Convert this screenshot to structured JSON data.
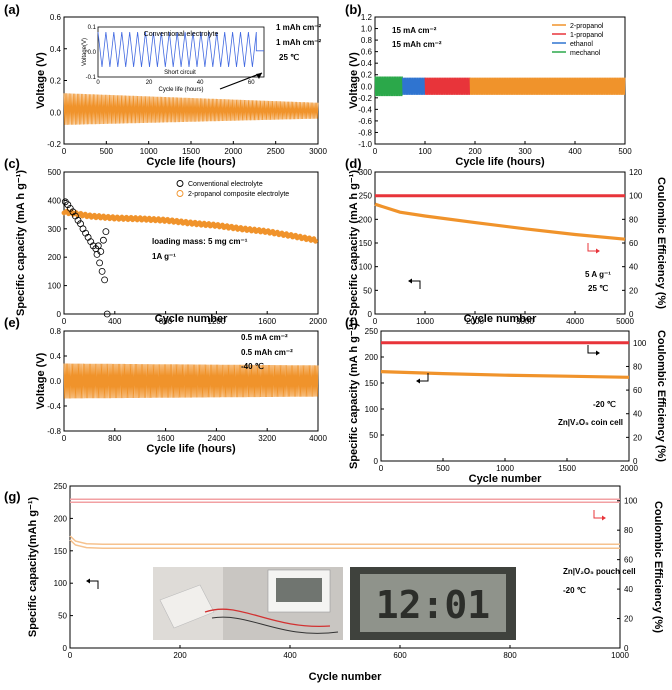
{
  "chart_data": [
    {
      "id": "a",
      "type": "line",
      "panel_label": "(a)",
      "xlabel": "Cycle life (hours)",
      "ylabel": "Voltage (V)",
      "xlim": [
        0,
        3000
      ],
      "ylim": [
        -0.2,
        0.6
      ],
      "xticks": [
        "0",
        "500",
        "1000",
        "1500",
        "2000",
        "2500",
        "3000"
      ],
      "yticks": [
        "-0.2",
        "0.0",
        "0.2",
        "0.4",
        "0.6"
      ],
      "series": [
        {
          "color": "#f0932b",
          "x": [
            0,
            3000
          ],
          "upper": [
            0.12,
            0.06
          ],
          "lower": [
            -0.08,
            -0.04
          ]
        }
      ],
      "inset": {
        "title": "Conventional electrolyte",
        "xlabel": "Cycle life (hours)",
        "ylabel": "Voltage(V)",
        "xlim": [
          0,
          65
        ],
        "ylim": [
          -0.1,
          0.1
        ],
        "xticks": [
          "0",
          "20",
          "40",
          "60"
        ],
        "yticks": [
          "-0.1",
          "0.0",
          "0.1"
        ],
        "annotation": "Short circuit",
        "short_circuit_x": 62,
        "color": "#4169e1"
      },
      "annotations": [
        "1 mAh cm⁻²",
        "1 mAh cm⁻²",
        "25 ℃"
      ]
    },
    {
      "id": "b",
      "type": "line",
      "panel_label": "(b)",
      "xlabel": "Cycle life (hours)",
      "ylabel": "Voltage (V)",
      "xlim": [
        0,
        500
      ],
      "ylim": [
        -1.0,
        1.2
      ],
      "xticks": [
        "0",
        "100",
        "200",
        "300",
        "400",
        "500"
      ],
      "yticks": [
        "-1.0",
        "-0.8",
        "-0.6",
        "-0.4",
        "-0.2",
        "0.0",
        "0.2",
        "0.4",
        "0.6",
        "0.8",
        "1.0",
        "1.2"
      ],
      "annotations": [
        "15 mA cm⁻²",
        "15 mAh cm⁻²"
      ],
      "series": [
        {
          "name": "2-propanol",
          "color": "#f0932b",
          "x": [
            190,
            500
          ],
          "upper": [
            0.15,
            0.15
          ],
          "lower": [
            -0.15,
            -0.15
          ]
        },
        {
          "name": "1-propanol",
          "color": "#e8343a",
          "x": [
            100,
            190
          ],
          "upper": [
            0.15,
            0.15
          ],
          "lower": [
            -0.15,
            -0.15
          ]
        },
        {
          "name": "ethanol",
          "color": "#2f74d0",
          "x": [
            55,
            100
          ],
          "upper": [
            0.15,
            0.15
          ],
          "lower": [
            -0.15,
            -0.15
          ]
        },
        {
          "name": "mechanol",
          "color": "#2ba84a",
          "x": [
            0,
            55
          ],
          "upper": [
            0.17,
            0.17
          ],
          "lower": [
            -0.17,
            -0.17
          ]
        }
      ],
      "legend_position": "top-right"
    },
    {
      "id": "c",
      "type": "scatter",
      "panel_label": "(c)",
      "xlabel": "Cycle number",
      "ylabel": "Specific capacity (mA h g⁻¹)",
      "xlim": [
        0,
        2000
      ],
      "ylim": [
        0,
        500
      ],
      "xticks": [
        "0",
        "400",
        "800",
        "1200",
        "1600",
        "2000"
      ],
      "yticks": [
        "0",
        "100",
        "200",
        "300",
        "400",
        "500"
      ],
      "annotations": [
        "loading mass: 5 mg cm⁻¹",
        "1A g⁻¹"
      ],
      "series": [
        {
          "name": "Conventional electrolyte",
          "color": "#000000",
          "x": [
            10,
            30,
            50,
            70,
            90,
            110,
            130,
            150,
            170,
            190,
            210,
            230,
            250,
            260,
            270,
            280,
            290,
            300,
            310,
            320,
            330,
            340
          ],
          "y": [
            395,
            385,
            372,
            360,
            345,
            330,
            318,
            300,
            285,
            270,
            255,
            240,
            230,
            210,
            240,
            180,
            220,
            150,
            260,
            120,
            290,
            0
          ]
        },
        {
          "name": "2-propanol composite electrolyte",
          "color": "#f0932b",
          "x": [
            0,
            200,
            400,
            600,
            800,
            1000,
            1200,
            1400,
            1600,
            1800,
            1980
          ],
          "y": [
            360,
            345,
            338,
            335,
            330,
            320,
            312,
            300,
            290,
            275,
            260
          ]
        }
      ],
      "legend_position": "top-right"
    },
    {
      "id": "d",
      "type": "line",
      "panel_label": "(d)",
      "xlabel": "Cycle number",
      "ylabel": "Specific capacity (mA h g⁻¹)",
      "y2label": "Coulombic Efficiency (%)",
      "xlim": [
        0,
        5000
      ],
      "ylim": [
        0,
        300
      ],
      "y2lim": [
        0,
        120
      ],
      "xticks": [
        "0",
        "1000",
        "2000",
        "3000",
        "4000",
        "5000"
      ],
      "yticks": [
        "0",
        "50",
        "100",
        "150",
        "200",
        "250",
        "300"
      ],
      "y2ticks": [
        "0",
        "20",
        "40",
        "60",
        "80",
        "100",
        "120"
      ],
      "annotations": [
        "5 A g⁻¹",
        "25 ℃"
      ],
      "series": [
        {
          "axis": "left",
          "color": "#f0932b",
          "x": [
            0,
            500,
            1000,
            2000,
            3000,
            4000,
            5000
          ],
          "y": [
            232,
            215,
            207,
            193,
            180,
            168,
            158
          ]
        },
        {
          "axis": "right",
          "color": "#e8343a",
          "x": [
            0,
            5000
          ],
          "y": [
            100,
            100
          ]
        }
      ]
    },
    {
      "id": "e",
      "type": "line",
      "panel_label": "(e)",
      "xlabel": "Cycle life (hours)",
      "ylabel": "Voltage (V)",
      "xlim": [
        0,
        4000
      ],
      "ylim": [
        -0.8,
        0.8
      ],
      "xticks": [
        "0",
        "800",
        "1600",
        "2400",
        "3200",
        "4000"
      ],
      "yticks": [
        "-0.8",
        "-0.4",
        "0.0",
        "0.4",
        "0.8"
      ],
      "annotations": [
        "0.5 mA cm⁻²",
        "0.5 mAh cm⁻²",
        "-40 ℃"
      ],
      "series": [
        {
          "color": "#f0932b",
          "x": [
            0,
            4000
          ],
          "upper": [
            0.28,
            0.25
          ],
          "lower": [
            -0.28,
            -0.25
          ]
        }
      ]
    },
    {
      "id": "f",
      "type": "line",
      "panel_label": "(f)",
      "xlabel": "Cycle number",
      "ylabel": "Specific capacity (mA h g⁻¹)",
      "y2label": "Coulombic Efficiency (%)",
      "xlim": [
        0,
        2000
      ],
      "ylim": [
        0,
        250
      ],
      "y2lim": [
        0,
        110
      ],
      "xticks": [
        "0",
        "500",
        "1000",
        "1500",
        "2000"
      ],
      "yticks": [
        "0",
        "50",
        "100",
        "150",
        "200",
        "250"
      ],
      "y2ticks": [
        "0",
        "20",
        "40",
        "60",
        "80",
        "100"
      ],
      "annotations": [
        "-20 ℃",
        "Zn|V₂O₅ coin cell"
      ],
      "series": [
        {
          "axis": "left",
          "color": "#f0932b",
          "x": [
            0,
            500,
            1000,
            1500,
            2000
          ],
          "y": [
            172,
            168,
            165,
            163,
            161
          ]
        },
        {
          "axis": "right",
          "color": "#e8343a",
          "x": [
            0,
            2000
          ],
          "y": [
            100,
            100
          ]
        }
      ]
    },
    {
      "id": "g",
      "type": "line",
      "panel_label": "(g)",
      "xlabel": "Cycle number",
      "ylabel": "Specific capacity(mAh g⁻¹)",
      "y2label": "Coulombic Efficiency (%)",
      "xlim": [
        0,
        1000
      ],
      "ylim": [
        0,
        250
      ],
      "y2lim": [
        0,
        110
      ],
      "xticks": [
        "0",
        "200",
        "400",
        "600",
        "800",
        "1000"
      ],
      "yticks": [
        "0",
        "50",
        "100",
        "150",
        "200",
        "250"
      ],
      "y2ticks": [
        "0",
        "20",
        "40",
        "60",
        "80",
        "100"
      ],
      "annotations": [
        "Zn|V₂O₅ pouch cell",
        "-20 ℃"
      ],
      "photo_display": "12:01",
      "series": [
        {
          "axis": "left",
          "color": "#f0932b",
          "x": [
            0,
            10,
            30,
            60,
            100,
            200,
            400,
            600,
            800,
            1000
          ],
          "y": [
            170,
            162,
            158,
            157,
            157,
            157,
            157,
            157,
            157,
            157
          ]
        },
        {
          "axis": "right",
          "color": "#e8343a",
          "x": [
            0,
            1000
          ],
          "y": [
            100,
            100
          ]
        }
      ]
    }
  ]
}
